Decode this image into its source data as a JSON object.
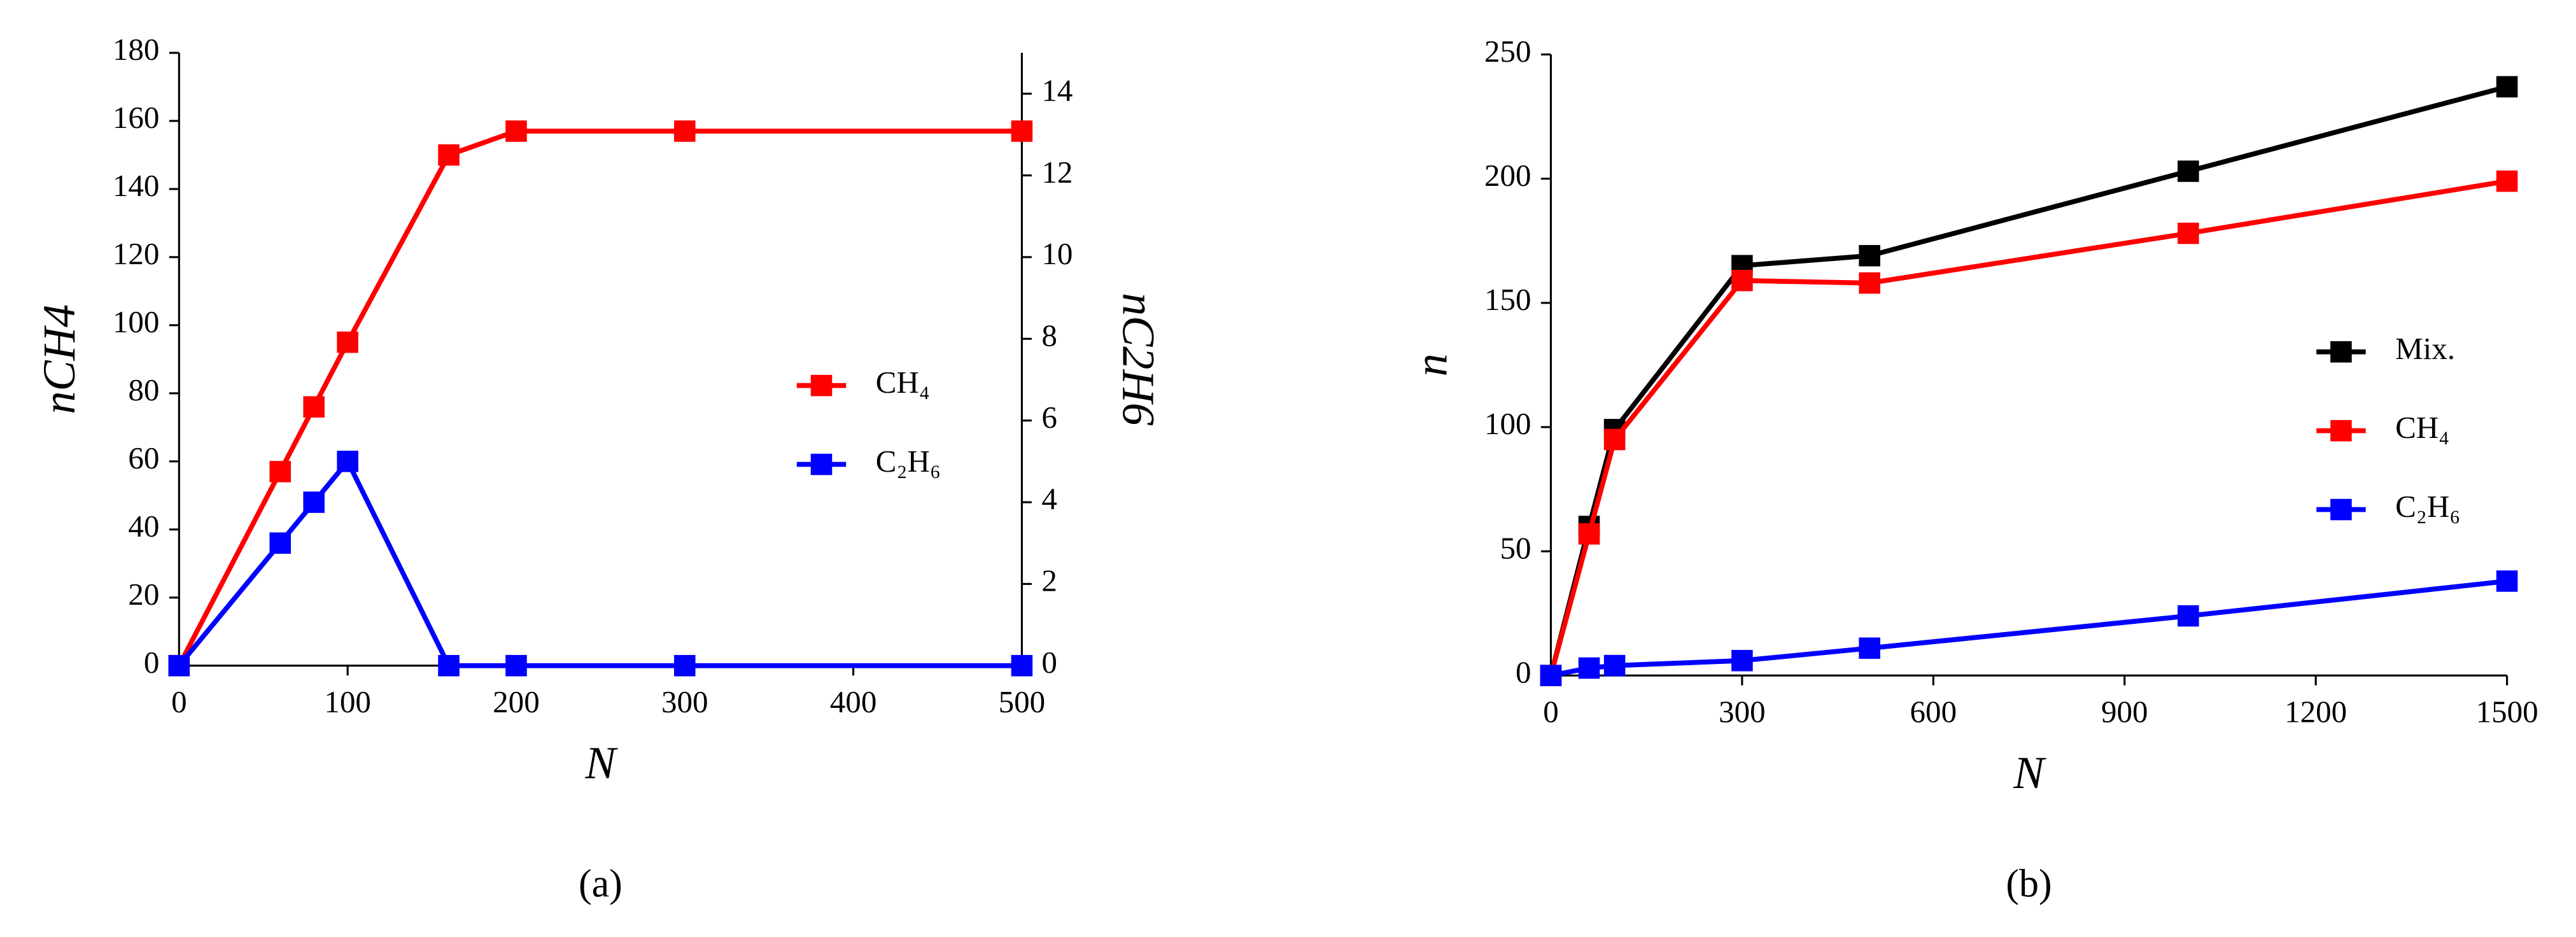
{
  "chart_data": [
    {
      "type": "line",
      "caption": "(a)",
      "x_label": "N",
      "y_label": "nCH4",
      "y2_label": "nC2H6",
      "x": [
        0,
        60,
        80,
        100,
        160,
        200,
        300,
        500
      ],
      "series": [
        {
          "name": "CH₄",
          "color": "#ff0000",
          "values": [
            0,
            57,
            76,
            95,
            150,
            157,
            157,
            157
          ]
        },
        {
          "name": "C₂H₆",
          "color": "#0000ff",
          "axis": "y2",
          "values": [
            0,
            3,
            4,
            5,
            0,
            0,
            0,
            0
          ]
        }
      ],
      "xlim": [
        0,
        500
      ],
      "xticks": [
        0,
        100,
        200,
        300,
        400,
        500
      ],
      "ylim": [
        0,
        180
      ],
      "yticks": [
        0,
        20,
        40,
        60,
        80,
        100,
        120,
        140,
        160,
        180
      ],
      "y2lim": [
        0,
        15
      ],
      "y2ticks": [
        0,
        2,
        4,
        6,
        8,
        10,
        12,
        14
      ],
      "legend": "center right",
      "grid": false
    },
    {
      "type": "line",
      "caption": "(b)",
      "x_label": "N",
      "y_label": "n",
      "x": [
        0,
        60,
        100,
        300,
        500,
        1000,
        1500
      ],
      "series": [
        {
          "name": "Mix.",
          "color": "#000000",
          "values": [
            0,
            60,
            99,
            165,
            169,
            203,
            237
          ]
        },
        {
          "name": "CH₄",
          "color": "#ff0000",
          "values": [
            0,
            57,
            95,
            159,
            158,
            178,
            199
          ]
        },
        {
          "name": "C₂H₆",
          "color": "#0000ff",
          "values": [
            0,
            3,
            4,
            6,
            11,
            24,
            38
          ]
        }
      ],
      "xlim": [
        0,
        1500
      ],
      "xticks": [
        0,
        300,
        600,
        900,
        1200,
        1500
      ],
      "ylim": [
        0,
        250
      ],
      "yticks": [
        0,
        50,
        100,
        150,
        200,
        250
      ],
      "legend": "center right",
      "grid": false
    }
  ]
}
